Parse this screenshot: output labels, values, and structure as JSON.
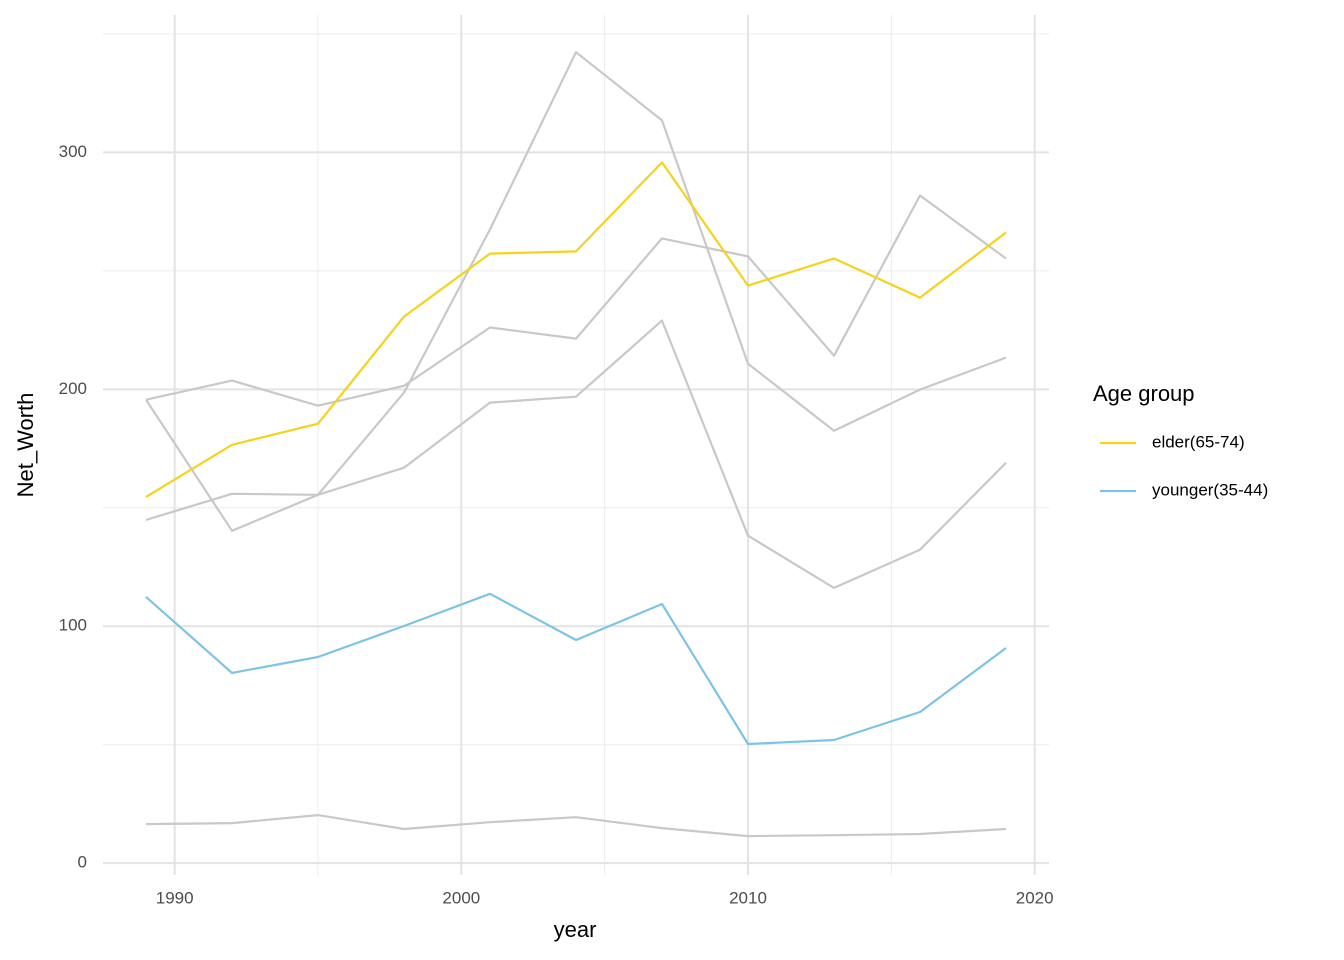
{
  "chart_data": {
    "type": "line",
    "x_label": "year",
    "y_label": "Net_Worth",
    "legend_title": "Age group",
    "legend_position": "right",
    "grid": true,
    "x": [
      1989,
      1992,
      1995,
      1998,
      2001,
      2004,
      2007,
      2010,
      2013,
      2016,
      2019
    ],
    "xlim": [
      1987.5,
      2020.5
    ],
    "xticks": [
      1990,
      2000,
      2010,
      2020
    ],
    "xminor": [
      1995,
      2005,
      2015
    ],
    "ylim": [
      -5,
      358
    ],
    "yticks": [
      0,
      100,
      200,
      300
    ],
    "yminor": [
      50,
      150,
      250,
      350
    ],
    "series": [
      {
        "color": "#c8c8c8",
        "values": [
          195.6,
          140.3,
          155.5,
          198.6,
          267.5,
          342.3,
          313.5,
          210.8,
          182.5,
          199.9,
          213.4
        ]
      },
      {
        "color": "#c8c8c8",
        "values": [
          195.6,
          203.7,
          193.1,
          201.5,
          226.1,
          221.4,
          263.7,
          256.1,
          214.2,
          281.8,
          255.2
        ]
      },
      {
        "color": "#c8c8c8",
        "values": [
          144.9,
          155.9,
          155.5,
          166.9,
          194.4,
          196.9,
          229.0,
          138.2,
          116.2,
          132.3,
          169.0
        ]
      },
      {
        "color": "#c8c8c8",
        "values": [
          16.5,
          16.9,
          20.3,
          14.4,
          17.3,
          19.4,
          14.8,
          11.4,
          11.8,
          12.3,
          14.4
        ]
      },
      {
        "name": "elder(65-74)",
        "color": "#f5d31a",
        "values": [
          154.6,
          176.6,
          185.5,
          230.7,
          257.3,
          258.2,
          295.8,
          243.8,
          255.2,
          238.7,
          266.2
        ]
      },
      {
        "name": "younger(35-44)",
        "color": "#7dc4e4",
        "values": [
          112.4,
          80.3,
          87.0,
          100.1,
          113.7,
          94.2,
          109.4,
          50.3,
          52.0,
          63.8,
          90.8
        ]
      }
    ]
  }
}
